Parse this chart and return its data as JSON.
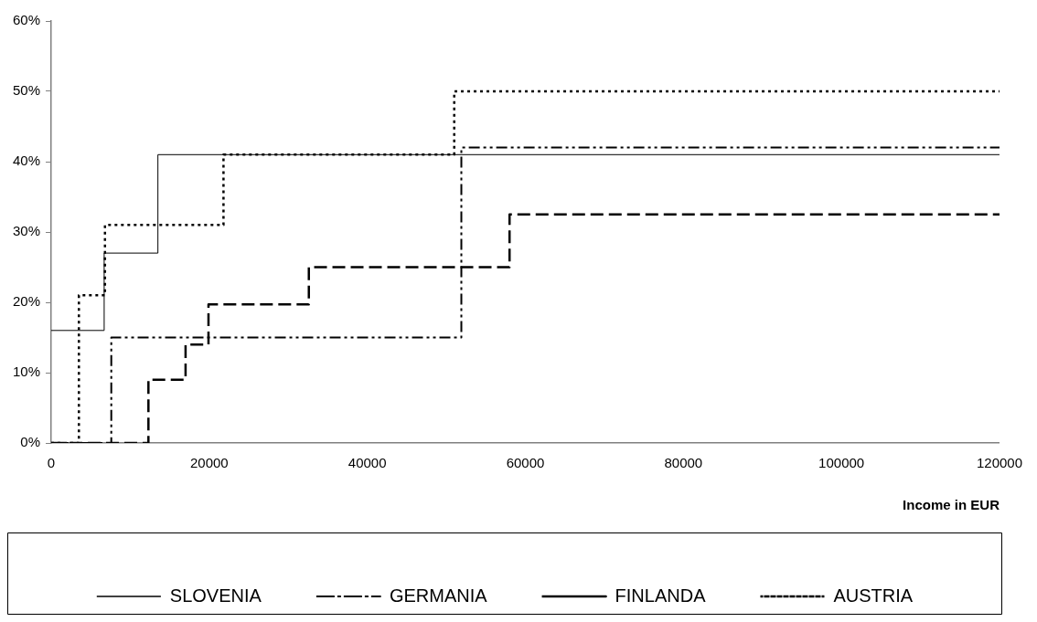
{
  "chart_data": {
    "type": "step",
    "xlabel": "Income in EUR",
    "xlim": [
      0,
      120000
    ],
    "xticks": [
      0,
      20000,
      40000,
      60000,
      80000,
      100000,
      120000
    ],
    "ylim": [
      0,
      60
    ],
    "yticks": [
      {
        "value": 0,
        "label": "0%"
      },
      {
        "value": 10,
        "label": "10%"
      },
      {
        "value": 20,
        "label": "20%"
      },
      {
        "value": 30,
        "label": "30%"
      },
      {
        "value": 40,
        "label": "40%"
      },
      {
        "value": 50,
        "label": "50%"
      },
      {
        "value": 60,
        "label": "60%"
      }
    ],
    "grid": false,
    "legend": "bottom",
    "marker": "none",
    "series": [
      {
        "name": "SLOVENIA",
        "color": "#000000",
        "line_style": "solid",
        "x": [
          0,
          6700,
          13500,
          120000
        ],
        "values": [
          16,
          27,
          41,
          41
        ]
      },
      {
        "name": "GERMANIA",
        "color": "#000000",
        "line_style": "dashdot",
        "x": [
          0,
          7600,
          51900,
          120000
        ],
        "values": [
          0,
          15,
          42,
          42
        ]
      },
      {
        "name": "FINLANDA",
        "color": "#000000",
        "line_style": "dashed",
        "x": [
          0,
          12300,
          17000,
          19900,
          32600,
          58000,
          120000
        ],
        "values": [
          0,
          9,
          14,
          19.7,
          25,
          32.5,
          32.5
        ]
      },
      {
        "name": "AUSTRIA",
        "color": "#000000",
        "line_style": "dotted",
        "x": [
          0,
          3500,
          6800,
          21800,
          51000,
          120000
        ],
        "values": [
          0,
          21,
          31,
          41,
          50,
          50
        ]
      }
    ]
  }
}
